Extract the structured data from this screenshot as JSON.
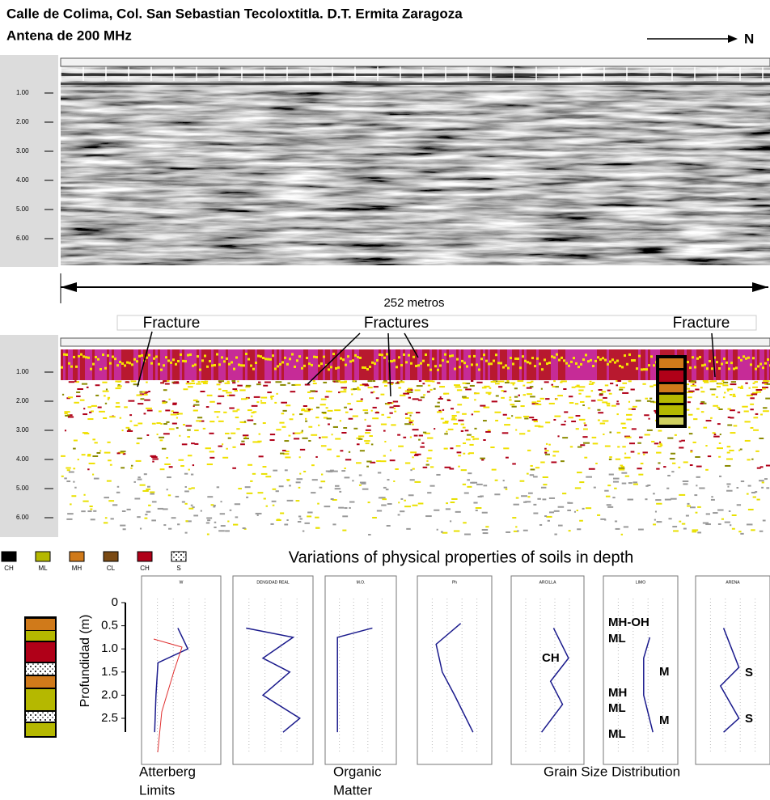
{
  "header": {
    "title_line1": "Calle de Colima, Col. San Sebastian Tecoloxtitla. D.T. Ermita Zaragoza",
    "title_line2": "Antena de 200 MHz",
    "north": "N"
  },
  "radargram": {
    "depth_ticks": [
      "1.00",
      "2.00",
      "3.00",
      "4.00",
      "5.00",
      "6.00"
    ],
    "distance_label": "252 metros"
  },
  "annotations": [
    "Fracture",
    "Fractures",
    "Fracture"
  ],
  "legend": [
    {
      "code": "CH",
      "color": "#000000"
    },
    {
      "code": "ML",
      "color": "#b5b800"
    },
    {
      "code": "MH",
      "color": "#d07a1a"
    },
    {
      "code": "CL",
      "color": "#7a4a14"
    },
    {
      "code": "CH",
      "color": "#b00018"
    },
    {
      "code": "S",
      "color": "#ffffff"
    }
  ],
  "properties": {
    "title": "Variations of physical properties of soils in depth",
    "y_axis_label": "Profundidad (m)",
    "depth_ticks": [
      "0",
      "0.5",
      "1.0",
      "1.5",
      "2.0",
      "2.5"
    ],
    "panels": [
      "W",
      "DENSIDAD REAL",
      "M.O.",
      "Ph",
      "ARCILLA",
      "LIMO",
      "ARENA"
    ],
    "soil_labels": [
      "CH",
      "MH-OH",
      "ML",
      "M",
      "MH",
      "ML",
      "M",
      "ML",
      "S",
      "S"
    ],
    "captions": [
      "Atterberg",
      "Limits",
      "Organic",
      "Matter",
      "Grain Size Distribution"
    ]
  }
}
